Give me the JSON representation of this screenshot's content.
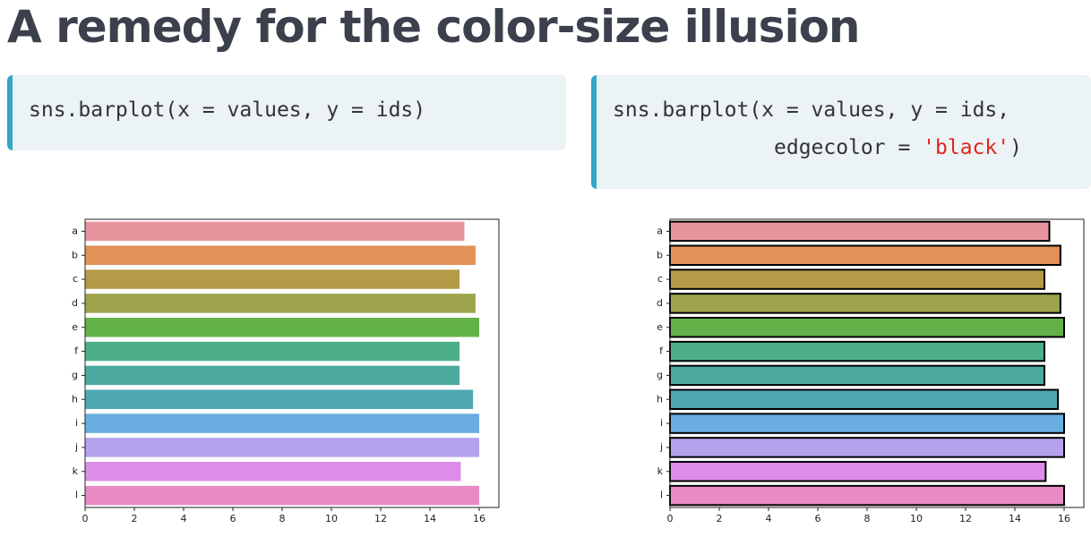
{
  "title": "A remedy for the color-size illusion",
  "code_blocks": [
    {
      "lines": [
        [
          "sns.barplot(x = values, y = ids)"
        ]
      ]
    },
    {
      "lines": [
        [
          "sns.barplot(x = values, y = ids,"
        ],
        [
          "edgecolor = ",
          "'black'",
          ")"
        ]
      ]
    }
  ],
  "chart_data": [
    {
      "type": "bar",
      "orientation": "horizontal",
      "edgecolor": null,
      "categories": [
        "a",
        "b",
        "c",
        "d",
        "e",
        "f",
        "g",
        "h",
        "i",
        "j",
        "k",
        "l"
      ],
      "values": [
        15.4,
        15.85,
        15.2,
        15.85,
        16,
        15.2,
        15.2,
        15.75,
        16,
        16,
        15.25,
        16
      ],
      "colors": [
        "#e8949e",
        "#e29157",
        "#b59a48",
        "#9da34b",
        "#62b249",
        "#4daf8a",
        "#4ba99e",
        "#4ea8b3",
        "#6aade0",
        "#b4a2ec",
        "#dd8ce9",
        "#e88bc5"
      ],
      "xlim": [
        0,
        16.8
      ],
      "xticks": [
        0,
        2,
        4,
        6,
        8,
        10,
        12,
        14,
        16
      ]
    },
    {
      "type": "bar",
      "orientation": "horizontal",
      "edgecolor": "black",
      "categories": [
        "a",
        "b",
        "c",
        "d",
        "e",
        "f",
        "g",
        "h",
        "i",
        "j",
        "k",
        "l"
      ],
      "values": [
        15.4,
        15.85,
        15.2,
        15.85,
        16,
        15.2,
        15.2,
        15.75,
        16,
        16,
        15.25,
        16
      ],
      "colors": [
        "#e8949e",
        "#e29157",
        "#b59a48",
        "#9da34b",
        "#62b249",
        "#4daf8a",
        "#4ba99e",
        "#4ea8b3",
        "#6aade0",
        "#b4a2ec",
        "#dd8ce9",
        "#e88bc5"
      ],
      "xlim": [
        0,
        16.8
      ],
      "xticks": [
        0,
        2,
        4,
        6,
        8,
        10,
        12,
        14,
        16
      ]
    }
  ]
}
